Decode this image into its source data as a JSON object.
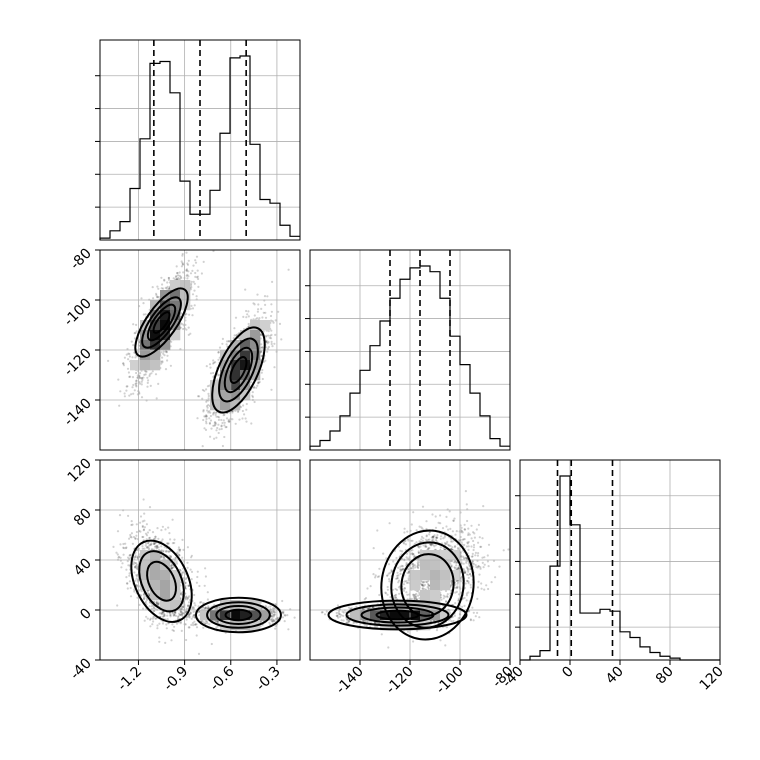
{
  "chart_data": {
    "type": "corner",
    "parameters": [
      {
        "range": [
          -1.45,
          -0.15
        ],
        "ticks": [
          -1.2,
          -0.9,
          -0.6,
          -0.3
        ],
        "tick_labels": [
          "-1.2",
          "-0.9",
          "-0.6",
          "-0.3"
        ],
        "quantiles": [
          -1.1,
          -0.8,
          -0.5
        ],
        "hist_bins": [
          -1.45,
          -1.385,
          -1.32,
          -1.255,
          -1.19,
          -1.125,
          -1.06,
          -0.995,
          -0.93,
          -0.865,
          -0.8,
          -0.735,
          -0.67,
          -0.605,
          -0.54,
          -0.475,
          -0.41,
          -0.345,
          -0.28,
          -0.215,
          -0.15
        ],
        "hist_counts": [
          0.01,
          0.05,
          0.1,
          0.28,
          0.55,
          0.96,
          0.97,
          0.8,
          0.32,
          0.14,
          0.14,
          0.27,
          0.58,
          0.99,
          1.0,
          0.52,
          0.22,
          0.2,
          0.08,
          0.02
        ]
      },
      {
        "range": [
          -160,
          -80
        ],
        "ticks": [
          -140,
          -120,
          -100,
          -80
        ],
        "tick_labels": [
          "-140",
          "-120",
          "-100",
          "-80"
        ],
        "quantiles": [
          -128,
          -116,
          -104
        ],
        "hist_bins": [
          -160,
          -156,
          -152,
          -148,
          -144,
          -140,
          -136,
          -132,
          -128,
          -124,
          -120,
          -116,
          -112,
          -108,
          -104,
          -100,
          -96,
          -92,
          -88,
          -84,
          -80
        ],
        "hist_counts": [
          0.02,
          0.05,
          0.1,
          0.18,
          0.3,
          0.42,
          0.55,
          0.68,
          0.8,
          0.9,
          0.96,
          0.97,
          0.94,
          0.8,
          0.6,
          0.45,
          0.3,
          0.18,
          0.06,
          0.02
        ]
      },
      {
        "range": [
          -40,
          120
        ],
        "ticks": [
          -40,
          0,
          40,
          80,
          120
        ],
        "tick_labels": [
          "-40",
          "0",
          "40",
          "80",
          "120"
        ],
        "quantiles": [
          -10,
          1,
          34
        ],
        "hist_bins": [
          -40,
          -32,
          -24,
          -16,
          -8,
          0,
          8,
          16,
          24,
          32,
          40,
          48,
          56,
          64,
          72,
          80,
          88,
          96,
          104,
          112,
          120
        ],
        "hist_counts": [
          0.0,
          0.02,
          0.05,
          0.5,
          0.98,
          0.72,
          0.25,
          0.25,
          0.27,
          0.26,
          0.15,
          0.12,
          0.07,
          0.04,
          0.02,
          0.01,
          0.0,
          0.0,
          0.0,
          0.0
        ]
      }
    ],
    "pairs": [
      {
        "row": 1,
        "col": 0,
        "clusters": [
          {
            "mean": [
              -1.05,
              -110
            ],
            "sd": [
              0.09,
              10
            ],
            "rho": 0.75,
            "weight": 0.5
          },
          {
            "mean": [
              -0.55,
              -128
            ],
            "sd": [
              0.09,
              10
            ],
            "rho": 0.65,
            "weight": 0.5
          }
        ],
        "contours": [
          {
            "center": [
              -1.05,
              -109
            ],
            "rx": 0.085,
            "ry": 14,
            "rotate_deg": 35,
            "scales": [
              0.35,
              0.6,
              0.85,
              1.15
            ]
          },
          {
            "center": [
              -0.55,
              -128
            ],
            "rx": 0.11,
            "ry": 16,
            "rotate_deg": 25,
            "scales": [
              0.35,
              0.6,
              0.85,
              1.15
            ]
          }
        ]
      },
      {
        "row": 2,
        "col": 0,
        "clusters": [
          {
            "mean": [
              -1.05,
              25
            ],
            "sd": [
              0.1,
              18
            ],
            "rho": -0.45,
            "weight": 0.5
          },
          {
            "mean": [
              -0.55,
              -4
            ],
            "sd": [
              0.12,
              4
            ],
            "rho": 0.0,
            "weight": 0.5
          }
        ],
        "contours": [
          {
            "center": [
              -1.05,
              23
            ],
            "rx": 0.15,
            "ry": 30,
            "rotate_deg": -25,
            "scales": [
              0.55,
              0.85,
              1.15
            ]
          },
          {
            "center": [
              -0.55,
              -4
            ],
            "rx": 0.24,
            "ry": 12,
            "rotate_deg": 0,
            "scales": [
              0.35,
              0.6,
              0.85,
              1.15
            ]
          }
        ]
      },
      {
        "row": 2,
        "col": 1,
        "clusters": [
          {
            "mean": [
              -125,
              -4
            ],
            "sd": [
              10,
              4
            ],
            "rho": 0.0,
            "weight": 0.55
          },
          {
            "mean": [
              -110,
              30
            ],
            "sd": [
              9,
              18
            ],
            "rho": 0.2,
            "weight": 0.45
          }
        ],
        "contours": [
          {
            "center": [
              -125,
              -4
            ],
            "rx": 24,
            "ry": 10,
            "rotate_deg": 0,
            "scales": [
              0.35,
              0.6,
              0.85,
              1.15
            ]
          },
          {
            "center": [
              -113,
              20
            ],
            "rx": 16,
            "ry": 38,
            "rotate_deg": 8,
            "scales": [
              0.65,
              0.9,
              1.15
            ]
          }
        ]
      }
    ],
    "grid": true
  }
}
